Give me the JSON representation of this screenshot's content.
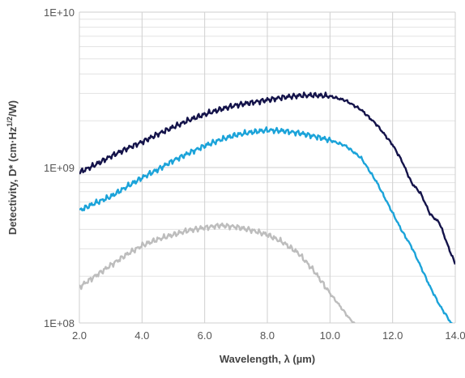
{
  "chart_data": {
    "type": "line",
    "xlabel": "Wavelength, λ (µm)",
    "ylabel": "Detectivity, D* (cm·Hz",
    "ylabel_sup": "1/2",
    "ylabel_end": "/W)",
    "xlim": [
      2.0,
      14.0
    ],
    "ylim": [
      100000000,
      10000000000
    ],
    "y_scale": "log",
    "grid": true,
    "x_ticks": [
      "2.0",
      "4.0",
      "6.0",
      "8.0",
      "10.0",
      "12.0",
      "14.0"
    ],
    "x_tick_values": [
      2,
      4,
      6,
      8,
      10,
      12,
      14
    ],
    "y_ticks": [
      "1E+08",
      "1E+09",
      "1E+10"
    ],
    "y_tick_values": [
      100000000,
      1000000000,
      10000000000
    ],
    "series": [
      {
        "color": "#14134a",
        "x": [
          2.0,
          2.5,
          3.0,
          3.5,
          4.0,
          4.5,
          5.0,
          5.5,
          6.0,
          6.5,
          7.0,
          7.5,
          8.0,
          8.5,
          9.0,
          9.5,
          10.0,
          10.5,
          11.0,
          11.5,
          12.0,
          12.3,
          12.6,
          12.9,
          13.2,
          13.5,
          13.8,
          14.0
        ],
        "y": [
          930000000,
          1040000000,
          1180000000,
          1320000000,
          1460000000,
          1640000000,
          1820000000,
          2020000000,
          2200000000,
          2370000000,
          2520000000,
          2620000000,
          2720000000,
          2830000000,
          2900000000,
          2920000000,
          2880000000,
          2700000000,
          2350000000,
          1880000000,
          1400000000,
          1100000000,
          800000000,
          680000000,
          500000000,
          440000000,
          300000000,
          240000000
        ]
      },
      {
        "color": "#1ba3d9",
        "x": [
          2.0,
          2.5,
          3.0,
          3.5,
          4.0,
          4.5,
          5.0,
          5.5,
          6.0,
          6.5,
          7.0,
          7.5,
          8.0,
          8.5,
          9.0,
          9.5,
          10.0,
          10.5,
          11.0,
          11.5,
          12.0,
          12.3,
          12.6,
          12.9,
          13.2,
          13.5,
          13.8,
          14.0
        ],
        "y": [
          530000000,
          590000000,
          650000000,
          750000000,
          860000000,
          970000000,
          1110000000,
          1240000000,
          1380000000,
          1510000000,
          1620000000,
          1690000000,
          1740000000,
          1720000000,
          1670000000,
          1590000000,
          1500000000,
          1380000000,
          1150000000,
          800000000,
          510000000,
          390000000,
          310000000,
          230000000,
          170000000,
          130000000,
          105000000,
          90000000
        ]
      },
      {
        "color": "#bdbdbd",
        "x": [
          2.0,
          2.5,
          3.0,
          3.5,
          4.0,
          4.5,
          5.0,
          5.5,
          6.0,
          6.5,
          7.0,
          7.5,
          8.0,
          8.5,
          9.0,
          9.5,
          10.0,
          10.3,
          10.6,
          10.8
        ],
        "y": [
          170000000,
          200000000,
          235000000,
          275000000,
          315000000,
          345000000,
          370000000,
          395000000,
          410000000,
          425000000,
          415000000,
          395000000,
          370000000,
          330000000,
          280000000,
          215000000,
          155000000,
          130000000,
          108000000,
          98000000
        ]
      }
    ]
  }
}
